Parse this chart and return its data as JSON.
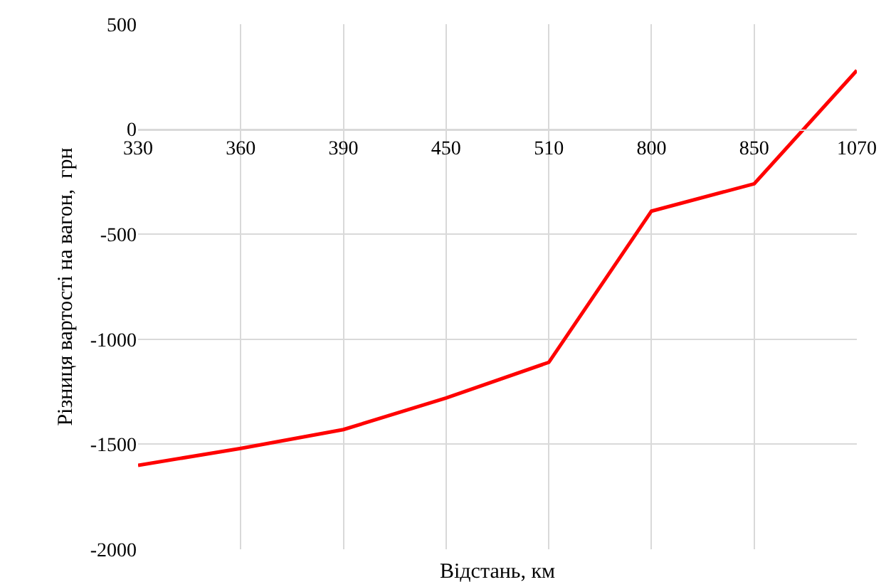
{
  "chart_data": {
    "type": "line",
    "xlabel": "Відстань, км",
    "ylabel": "Різниця вартості на вагон,  грн",
    "categories": [
      "330",
      "360",
      "390",
      "450",
      "510",
      "800",
      "850",
      "1070"
    ],
    "series": [
      {
        "color": "#ff0000",
        "values": [
          -1600,
          -1520,
          -1430,
          -1280,
          -1110,
          -390,
          -260,
          280
        ]
      }
    ],
    "ylim": [
      -2000,
      500
    ],
    "yticks": [
      -2000,
      -1500,
      -1000,
      -500,
      0,
      500
    ],
    "grid": true,
    "marker": "none",
    "line_style": "solid"
  }
}
